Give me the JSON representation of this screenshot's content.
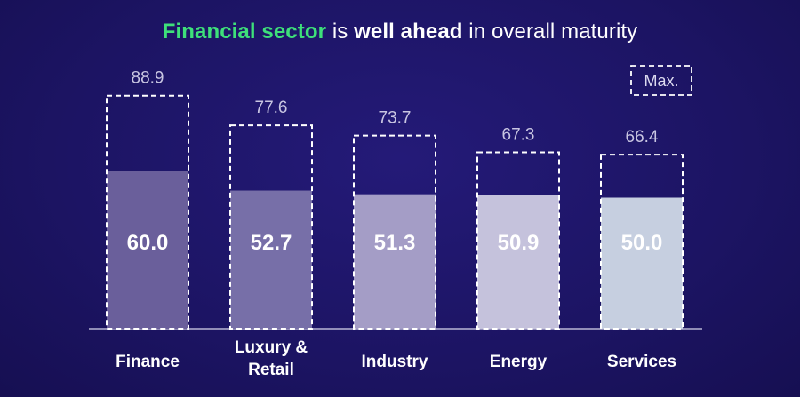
{
  "title": {
    "highlight": "Financial sector",
    "part2": " is ",
    "bold": "well ahead",
    "part3": " in overall maturity"
  },
  "legend": {
    "max_label": "Max."
  },
  "colors": {
    "background": "#1d1566",
    "title_highlight": "#3ee07a",
    "bars": [
      "#6a5f9b",
      "#776fa8",
      "#a49dc6",
      "#c5c2dc",
      "#c6cfe0"
    ]
  },
  "chart_data": {
    "type": "bar",
    "title": "Financial sector is well ahead in overall maturity",
    "categories": [
      "Finance",
      "Luxury & Retail",
      "Industry",
      "Energy",
      "Services"
    ],
    "category_lines": [
      [
        "Finance"
      ],
      [
        "Luxury &",
        "Retail"
      ],
      [
        "Industry"
      ],
      [
        "Energy"
      ],
      [
        "Services"
      ]
    ],
    "series": [
      {
        "name": "Overall maturity",
        "values": [
          60.0,
          52.7,
          51.3,
          50.9,
          50.0
        ]
      },
      {
        "name": "Max.",
        "values": [
          88.9,
          77.6,
          73.7,
          67.3,
          66.4
        ]
      }
    ],
    "value_labels": [
      "60.0",
      "52.7",
      "51.3",
      "50.9",
      "50.0"
    ],
    "max_labels": [
      "88.9",
      "77.6",
      "73.7",
      "67.3",
      "66.4"
    ],
    "xlabel": "",
    "ylabel": "",
    "ylim": [
      0,
      100
    ],
    "legend": "top-right"
  }
}
